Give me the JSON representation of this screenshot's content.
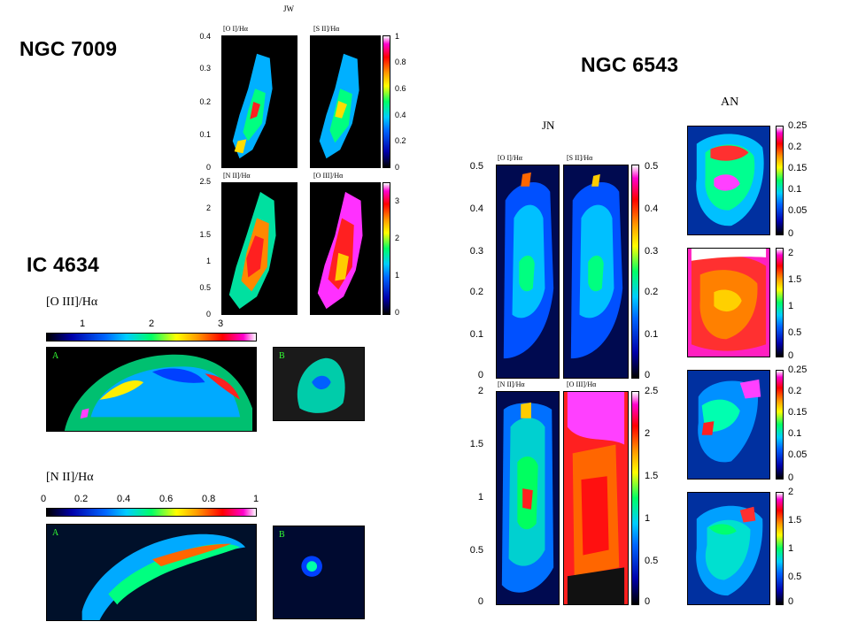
{
  "titles": {
    "ngc7009": "NGC 7009",
    "ngc6543": "NGC 6543",
    "ic4634": "IC 4634"
  },
  "ngc7009": {
    "top_label": "JW",
    "panels": [
      "[O I]/Hα",
      "[S II]/Hα",
      "[N II]/Hα",
      "[O III]/Hα"
    ],
    "ticks_top_left": [
      "0.4",
      "0.3",
      "0.2",
      "0.1",
      "0"
    ],
    "ticks_top_right": [
      "1",
      "0.8",
      "0.6",
      "0.4",
      "0.2",
      "0"
    ],
    "ticks_bottom_left": [
      "2.5",
      "2",
      "1.5",
      "1",
      "0.5",
      "0"
    ],
    "ticks_bottom_right": [
      "3",
      "2",
      "1",
      "0"
    ]
  },
  "ngc6543": {
    "jn_label": "JN",
    "an_label": "AN",
    "panels": [
      "[O I]/Hα",
      "[S II]/Hα",
      "[N II]/Hα",
      "[O III]/Hα"
    ],
    "ticks_top_left": [
      "0.5",
      "0.4",
      "0.3",
      "0.2",
      "0.1",
      "0"
    ],
    "ticks_top_right": [
      "0.5",
      "0.4",
      "0.3",
      "0.2",
      "0.1",
      "0"
    ],
    "ticks_bottom_left": [
      "2",
      "1.5",
      "1",
      "0.5",
      "0"
    ],
    "ticks_bottom_right": [
      "2.5",
      "2",
      "1.5",
      "1",
      "0.5",
      "0"
    ],
    "an_ticks_1": [
      "0.25",
      "0.2",
      "0.15",
      "0.1",
      "0.05",
      "0"
    ],
    "an_ticks_2": [
      "2",
      "1.5",
      "1",
      "0.5",
      "0"
    ],
    "an_ticks_3": [
      "0.25",
      "0.2",
      "0.15",
      "0.1",
      "0.05",
      "0"
    ],
    "an_ticks_4": [
      "2",
      "1.5",
      "1",
      "0.5",
      "0"
    ]
  },
  "ic4634": {
    "oiii_label": "[O III]/Hα",
    "oiii_ticks": [
      "1",
      "2",
      "3"
    ],
    "nii_label": "[N II]/Hα",
    "nii_ticks": [
      "0",
      "0.2",
      "0.4",
      "0.6",
      "0.8",
      "1"
    ],
    "sub_a": "A",
    "sub_b": "B"
  },
  "colors": {
    "background": "#ffffff",
    "map_background": "#000000",
    "subpanel_label": "#33ff33"
  }
}
